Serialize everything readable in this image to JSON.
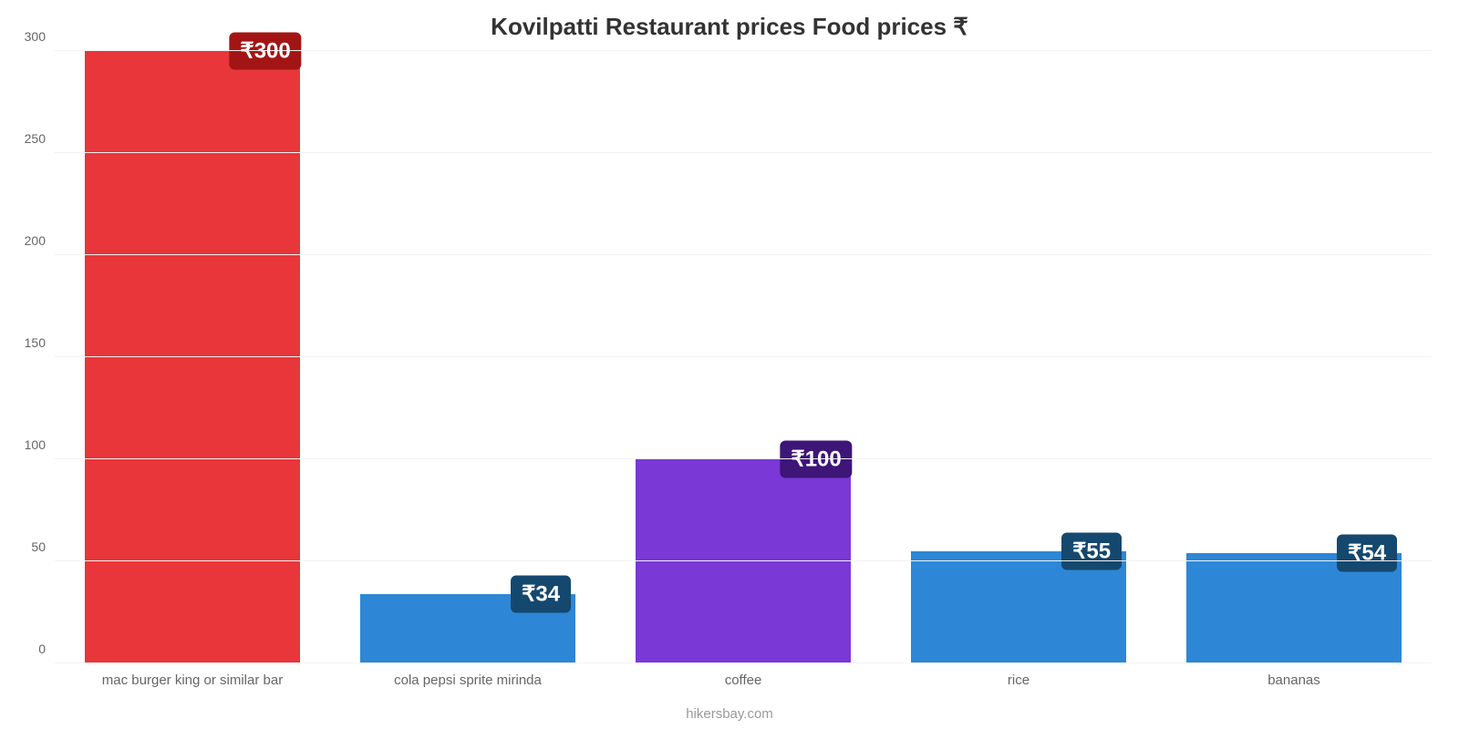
{
  "chart": {
    "type": "bar",
    "title": "Kovilpatti Restaurant prices Food prices ₹",
    "title_fontsize": 26,
    "title_color": "#333333",
    "footer": "hikersbay.com",
    "footer_fontsize": 15,
    "footer_color": "#999999",
    "background_color": "#ffffff",
    "grid_color": "#f2f2f2",
    "baseline_color": "#dddddd",
    "ylim": [
      0,
      300
    ],
    "ytick_step": 50,
    "ytick_fontsize": 14,
    "ytick_color": "#666666",
    "xlabel_fontsize": 15,
    "xlabel_color": "#666666",
    "bar_width": 0.78,
    "value_prefix": "₹",
    "value_badge_fontsize": 24,
    "value_badge_radius": 6,
    "categories": [
      "mac burger king or similar bar",
      "cola pepsi sprite mirinda",
      "coffee",
      "rice",
      "bananas"
    ],
    "values": [
      300,
      34,
      100,
      55,
      54
    ],
    "value_labels": [
      "₹300",
      "₹34",
      "₹100",
      "₹55",
      "₹54"
    ],
    "bar_colors": [
      "#e8363a",
      "#2d87d6",
      "#7a38d6",
      "#2d87d6",
      "#2d87d6"
    ],
    "badge_colors": [
      "#a31515",
      "#15486f",
      "#3d1678",
      "#15486f",
      "#15486f"
    ],
    "badge_offset_x": 0.34
  }
}
